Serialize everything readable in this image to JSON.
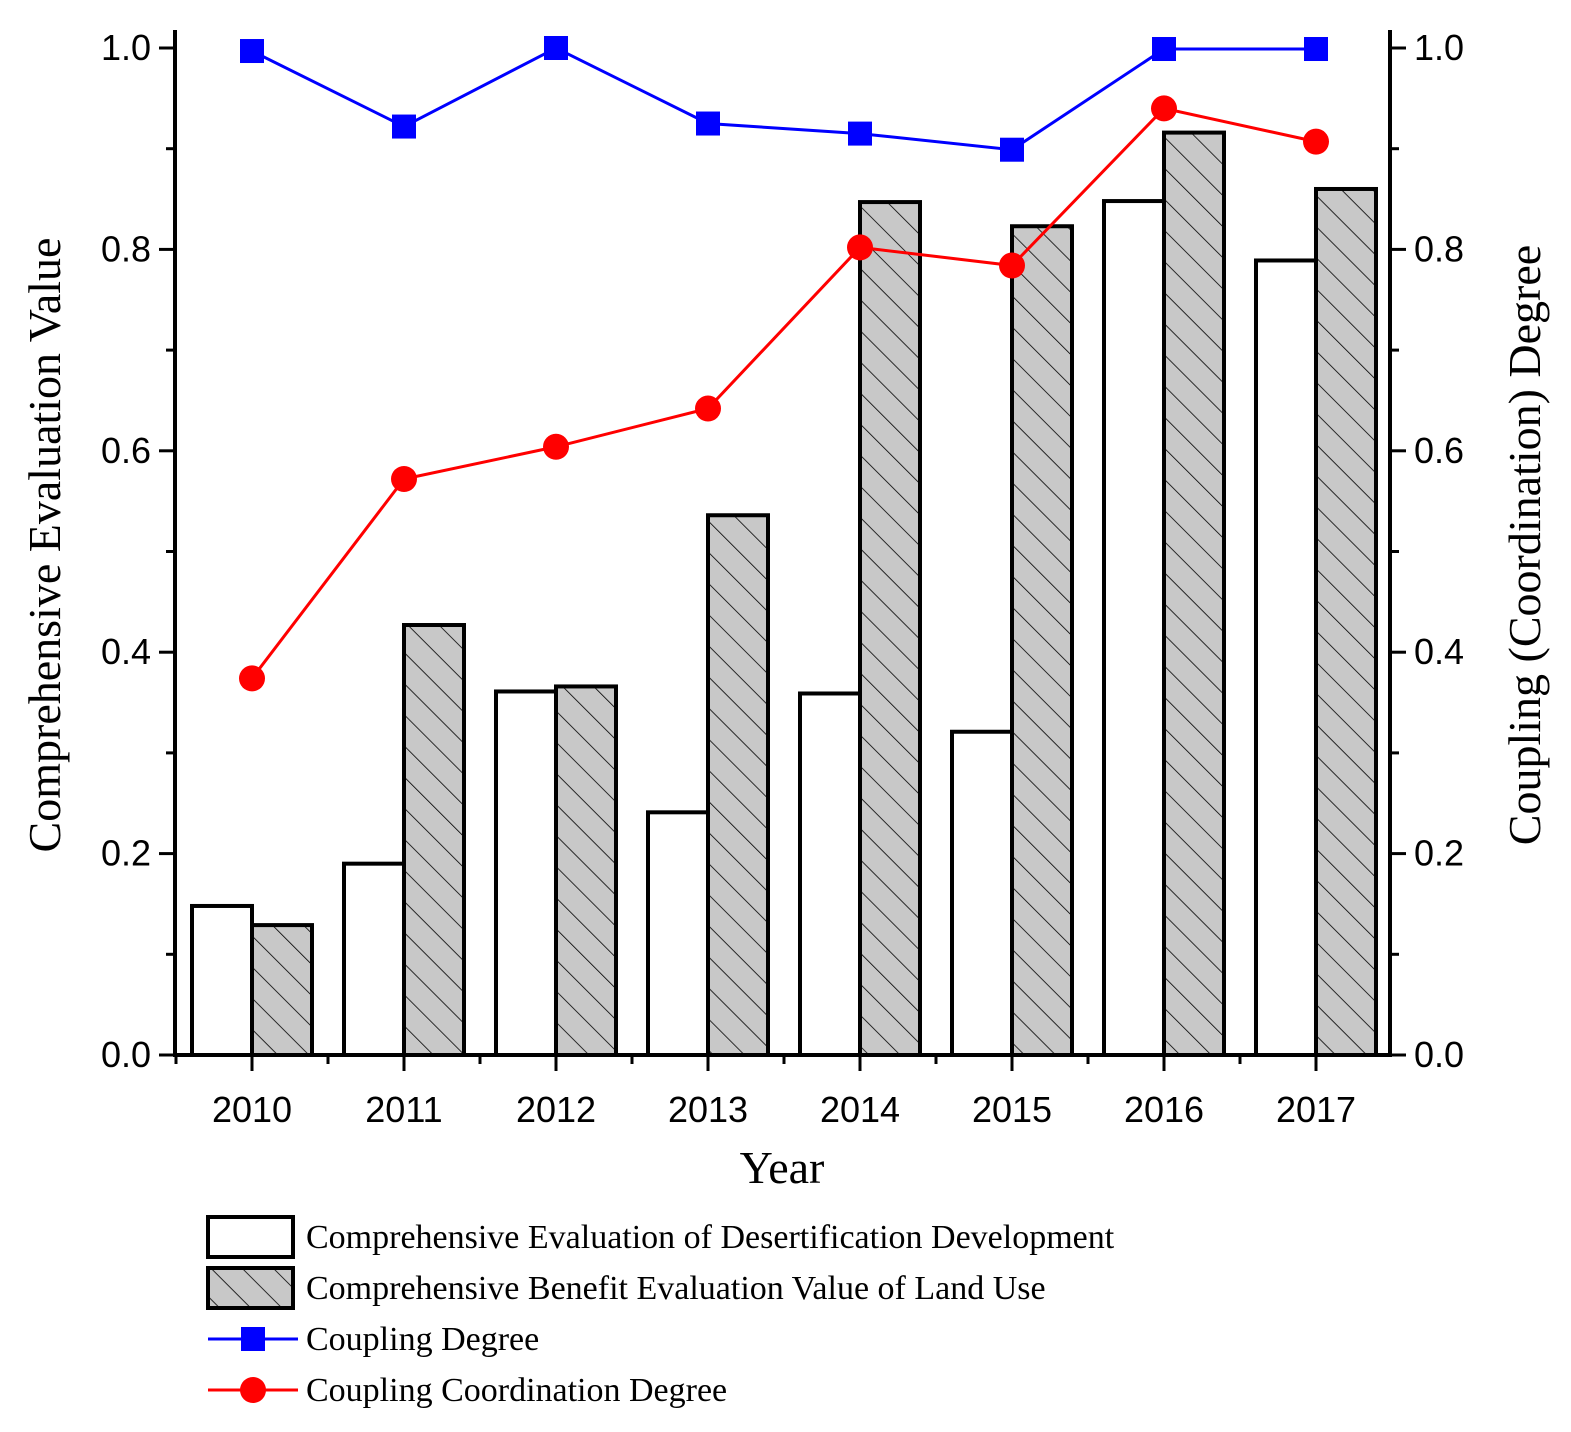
{
  "chart_data": {
    "type": "bar",
    "xlabel": "Year",
    "ylabel": "Comprehensive Evaluation Value",
    "y2label": "Coupling (Coordination) Degree",
    "categories": [
      "2010",
      "2011",
      "2012",
      "2013",
      "2014",
      "2015",
      "2016",
      "2017"
    ],
    "ylim": [
      0,
      1.0
    ],
    "y2lim": [
      0,
      1.0
    ],
    "yticks": [
      "0.0",
      "0.2",
      "0.4",
      "0.6",
      "0.8",
      "1.0"
    ],
    "y2ticks": [
      "0.0",
      "0.2",
      "0.4",
      "0.6",
      "0.8",
      "1.0"
    ],
    "grid": false,
    "legend_position": "bottom",
    "series": [
      {
        "name": "Comprehensive Evaluation of Desertification Development",
        "kind": "bar",
        "fill": "#ffffff",
        "pattern": "none",
        "axis": "left",
        "values": [
          0.148,
          0.19,
          0.361,
          0.241,
          0.359,
          0.321,
          0.848,
          0.789
        ]
      },
      {
        "name": "Comprehensive Benefit Evaluation Value of Land Use",
        "kind": "bar",
        "fill": "#c8c8c8",
        "pattern": "diagonal-hatch",
        "axis": "left",
        "values": [
          0.129,
          0.427,
          0.366,
          0.536,
          0.847,
          0.823,
          0.916,
          0.86
        ]
      },
      {
        "name": "Coupling Degree",
        "kind": "line",
        "color": "#0000ff",
        "marker": "square",
        "axis": "right",
        "values": [
          0.997,
          0.922,
          1.0,
          0.925,
          0.915,
          0.899,
          0.999,
          0.999
        ]
      },
      {
        "name": "Coupling Coordination Degree",
        "kind": "line",
        "color": "#ff0000",
        "marker": "circle",
        "axis": "right",
        "values": [
          0.374,
          0.572,
          0.604,
          0.642,
          0.802,
          0.784,
          0.94,
          0.907
        ]
      }
    ]
  }
}
